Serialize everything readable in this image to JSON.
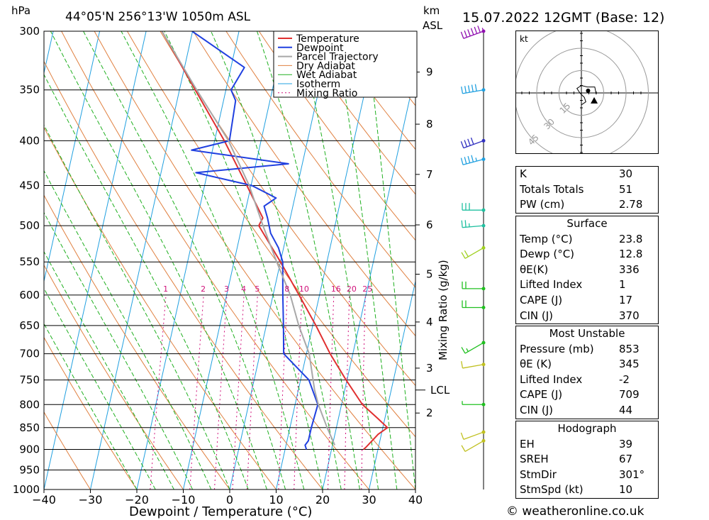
{
  "header": {
    "pressure_unit": "hPa",
    "location": "44°05'N  256°13'W  1050m  ASL",
    "km_unit": "km",
    "km_asl": "ASL",
    "datetime": "15.07.2022  12GMT  (Base: 12)"
  },
  "chart_data": {
    "type": "line",
    "chart_kind": "Skew-T log-P sounding",
    "xlabel": "Dewpoint / Temperature (°C)",
    "x_ticks": [
      -40,
      -30,
      -20,
      -10,
      0,
      10,
      20,
      30,
      40
    ],
    "xlim": [
      -40,
      40
    ],
    "pressure_levels": [
      300,
      350,
      400,
      450,
      500,
      550,
      600,
      650,
      700,
      750,
      800,
      850,
      900,
      950,
      1000
    ],
    "ylim_hpa": [
      1000,
      300
    ],
    "y_scale": "log",
    "height_axis": {
      "label": "km ASL",
      "ticks": [
        {
          "km": "2",
          "p": 818
        },
        {
          "km": "3",
          "p": 727
        },
        {
          "km": "4",
          "p": 644
        },
        {
          "km": "5",
          "p": 568
        },
        {
          "km": "6",
          "p": 499
        },
        {
          "km": "7",
          "p": 437
        },
        {
          "km": "8",
          "p": 383
        },
        {
          "km": "9",
          "p": 334
        }
      ],
      "lcl_label": "LCL",
      "lcl_p": 770
    },
    "mixing_ratio_axis_label": "Mixing Ratio (g/kg)",
    "mixing_ratio_labels": [
      "1",
      "2",
      "3",
      "4",
      "5",
      "8",
      "10",
      "16",
      "20",
      "25"
    ],
    "legend": [
      "Temperature",
      "Dewpoint",
      "Parcel Trajectory",
      "Dry Adiabat",
      "Wet Adiabat",
      "Isotherm",
      "Mixing Ratio"
    ],
    "legend_position": "top",
    "colors": {
      "temperature": "#e03030",
      "dewpoint": "#2040e0",
      "parcel": "#a8a8a8",
      "dry_adiabat": "#e08040",
      "wet_adiabat": "#20b020",
      "isotherm": "#20a0e0",
      "mixing_ratio": "#d0107a"
    },
    "series": [
      {
        "name": "Temperature",
        "points": [
          [
            900,
            26.9
          ],
          [
            895,
            27.3
          ],
          [
            880,
            28.3
          ],
          [
            865,
            29.3
          ],
          [
            850,
            31.0
          ],
          [
            830,
            28.5
          ],
          [
            800,
            24.5
          ],
          [
            750,
            19.8
          ],
          [
            700,
            15.1
          ],
          [
            650,
            10.7
          ],
          [
            600,
            5.6
          ],
          [
            550,
            0.0
          ],
          [
            500,
            -6.4
          ],
          [
            490,
            -5.9
          ],
          [
            450,
            -10.9
          ],
          [
            400,
            -17.9
          ],
          [
            350,
            -26.6
          ],
          [
            300,
            -36.6
          ]
        ]
      },
      {
        "name": "Dewpoint",
        "points": [
          [
            900,
            14.6
          ],
          [
            890,
            14.1
          ],
          [
            880,
            14.6
          ],
          [
            850,
            14.6
          ],
          [
            800,
            14.9
          ],
          [
            750,
            11.8
          ],
          [
            700,
            5.1
          ],
          [
            650,
            3.7
          ],
          [
            600,
            2.1
          ],
          [
            550,
            0.5
          ],
          [
            530,
            -1.1
          ],
          [
            510,
            -3.5
          ],
          [
            490,
            -4.9
          ],
          [
            475,
            -6.2
          ],
          [
            465,
            -4.0
          ],
          [
            450,
            -9.8
          ],
          [
            435,
            -22.5
          ],
          [
            425,
            -3.0
          ],
          [
            410,
            -24.5
          ],
          [
            400,
            -16.8
          ],
          [
            360,
            -17.4
          ],
          [
            350,
            -18.9
          ],
          [
            330,
            -17.1
          ],
          [
            300,
            -30.1
          ]
        ]
      },
      {
        "name": "Parcel Trajectory",
        "points": [
          [
            890,
            20.5
          ],
          [
            850,
            18.0
          ],
          [
            800,
            15.0
          ],
          [
            770,
            13.5
          ],
          [
            700,
            10.6
          ],
          [
            650,
            7.0
          ],
          [
            600,
            3.7
          ],
          [
            550,
            -0.8
          ],
          [
            500,
            -5.5
          ],
          [
            450,
            -10.4
          ],
          [
            400,
            -17.0
          ],
          [
            350,
            -26.3
          ],
          [
            300,
            -36.6
          ]
        ]
      }
    ]
  },
  "wind_barbs": [
    {
      "p": 300,
      "speed_kt": 65,
      "dir_deg": 250,
      "color": "#9010b0"
    },
    {
      "p": 350,
      "speed_kt": 50,
      "dir_deg": 260,
      "color": "#20a0e0"
    },
    {
      "p": 400,
      "speed_kt": 40,
      "dir_deg": 250,
      "color": "#3030c0"
    },
    {
      "p": 420,
      "speed_kt": 45,
      "dir_deg": 255,
      "color": "#20a0e0"
    },
    {
      "p": 480,
      "speed_kt": 30,
      "dir_deg": 270,
      "color": "#20c0a0"
    },
    {
      "p": 500,
      "speed_kt": 25,
      "dir_deg": 265,
      "color": "#20c0a0"
    },
    {
      "p": 530,
      "speed_kt": 20,
      "dir_deg": 240,
      "color": "#a0d020"
    },
    {
      "p": 590,
      "speed_kt": 20,
      "dir_deg": 270,
      "color": "#20c020"
    },
    {
      "p": 620,
      "speed_kt": 20,
      "dir_deg": 270,
      "color": "#20c020"
    },
    {
      "p": 680,
      "speed_kt": 15,
      "dir_deg": 240,
      "color": "#20c020"
    },
    {
      "p": 720,
      "speed_kt": 10,
      "dir_deg": 260,
      "color": "#c0c020"
    },
    {
      "p": 800,
      "speed_kt": 5,
      "dir_deg": 270,
      "color": "#20c020"
    },
    {
      "p": 860,
      "speed_kt": 10,
      "dir_deg": 250,
      "color": "#c0c020"
    },
    {
      "p": 880,
      "speed_kt": 10,
      "dir_deg": 240,
      "color": "#c0c020"
    }
  ],
  "hodograph": {
    "unit_label": "kt",
    "ring_labels": [
      "15",
      "30",
      "45"
    ],
    "ring_speeds_kt": [
      15,
      30,
      45
    ],
    "trace_kt": [
      [
        0,
        -8
      ],
      [
        3,
        -6
      ],
      [
        2,
        -3
      ],
      [
        -1,
        0
      ],
      [
        -3,
        3
      ],
      [
        0,
        5
      ],
      [
        4,
        4
      ],
      [
        9,
        4
      ],
      [
        10,
        -1
      ]
    ],
    "storm_motion_kt": [
      8.6,
      -5.2
    ],
    "marker_kt": [
      4.5,
      1.5
    ]
  },
  "indices": [
    {
      "label": "K",
      "value": "30"
    },
    {
      "label": "Totals Totals",
      "value": "51"
    },
    {
      "label": "PW (cm)",
      "value": "2.78"
    }
  ],
  "surface": {
    "title": "Surface",
    "rows": [
      {
        "label": "Temp (°C)",
        "value": "23.8"
      },
      {
        "label": "Dewp (°C)",
        "value": "12.8"
      },
      {
        "label": "θE(K)",
        "value": "336"
      },
      {
        "label": "Lifted Index",
        "value": "1"
      },
      {
        "label": "CAPE (J)",
        "value": "17"
      },
      {
        "label": "CIN (J)",
        "value": "370"
      }
    ]
  },
  "most_unstable": {
    "title": "Most Unstable",
    "rows": [
      {
        "label": "Pressure (mb)",
        "value": "853"
      },
      {
        "label": "θE (K)",
        "value": "345"
      },
      {
        "label": "Lifted Index",
        "value": "-2"
      },
      {
        "label": "CAPE (J)",
        "value": "709"
      },
      {
        "label": "CIN (J)",
        "value": "44"
      }
    ]
  },
  "hodograph_indices": {
    "title": "Hodograph",
    "rows": [
      {
        "label": "EH",
        "value": "39"
      },
      {
        "label": "SREH",
        "value": "67"
      },
      {
        "label": "StmDir",
        "value": "301°"
      },
      {
        "label": "StmSpd (kt)",
        "value": "10"
      }
    ]
  },
  "credit": "© weatheronline.co.uk"
}
